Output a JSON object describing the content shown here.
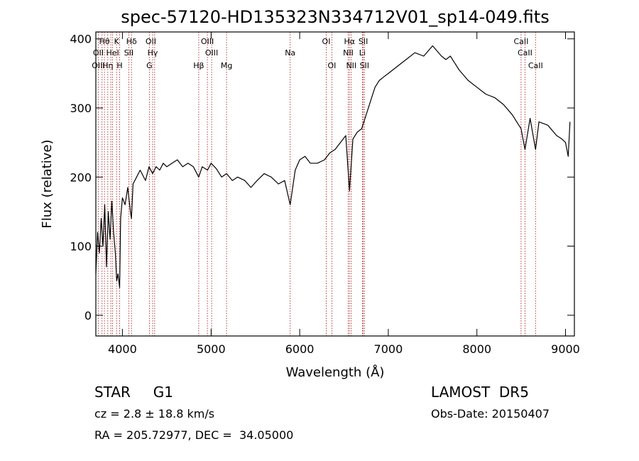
{
  "chart_data": {
    "type": "line",
    "title": "spec-57120-HD135323N334712V01_sp14-049.fits",
    "xlabel": "Wavelength (Å)",
    "ylabel": "Flux (relative)",
    "xlim": [
      3700,
      9100
    ],
    "ylim": [
      -30,
      410
    ],
    "xticks": [
      4000,
      5000,
      6000,
      7000,
      8000,
      9000
    ],
    "yticks": [
      0,
      100,
      200,
      300,
      400
    ],
    "grid": false,
    "line_color": "#000000",
    "marker_color": "#b22222",
    "spectrum": {
      "x": [
        3700,
        3720,
        3740,
        3760,
        3780,
        3800,
        3820,
        3840,
        3860,
        3880,
        3900,
        3920,
        3935,
        3950,
        3968,
        3980,
        4000,
        4030,
        4060,
        4090,
        4101,
        4120,
        4160,
        4200,
        4260,
        4300,
        4340,
        4380,
        4420,
        4460,
        4500,
        4560,
        4620,
        4680,
        4740,
        4800,
        4861,
        4900,
        4960,
        5000,
        5060,
        5120,
        5175,
        5240,
        5300,
        5380,
        5450,
        5520,
        5600,
        5680,
        5760,
        5830,
        5893,
        5950,
        6000,
        6060,
        6120,
        6200,
        6280,
        6340,
        6400,
        6460,
        6520,
        6563,
        6600,
        6650,
        6700,
        6750,
        6800,
        6850,
        6900,
        6950,
        7000,
        7100,
        7200,
        7300,
        7400,
        7500,
        7600,
        7650,
        7700,
        7750,
        7800,
        7900,
        8000,
        8100,
        8200,
        8300,
        8400,
        8498,
        8542,
        8600,
        8662,
        8700,
        8800,
        8900,
        8960,
        9000,
        9030,
        9050
      ],
      "y": [
        60,
        120,
        90,
        140,
        100,
        160,
        70,
        150,
        110,
        165,
        120,
        90,
        50,
        60,
        40,
        140,
        170,
        160,
        185,
        150,
        140,
        190,
        200,
        210,
        195,
        215,
        205,
        215,
        210,
        220,
        215,
        220,
        225,
        215,
        220,
        215,
        200,
        215,
        210,
        220,
        212,
        200,
        205,
        195,
        200,
        195,
        185,
        195,
        205,
        200,
        190,
        195,
        160,
        210,
        225,
        230,
        220,
        220,
        225,
        235,
        240,
        250,
        260,
        180,
        255,
        265,
        270,
        290,
        310,
        330,
        340,
        345,
        350,
        360,
        370,
        380,
        375,
        390,
        375,
        370,
        375,
        365,
        355,
        340,
        330,
        320,
        315,
        305,
        290,
        270,
        240,
        285,
        240,
        280,
        275,
        260,
        255,
        250,
        230,
        280
      ]
    },
    "annotations": [
      {
        "text": "Hθ",
        "x": 3797,
        "row": 1
      },
      {
        "text": "K",
        "x": 3934,
        "row": 1
      },
      {
        "text": "Hδ",
        "x": 4102,
        "row": 1
      },
      {
        "text": "OII",
        "x": 4320,
        "row": 1
      },
      {
        "text": "OIII",
        "x": 4959,
        "row": 1
      },
      {
        "text": "OI",
        "x": 6300,
        "row": 1
      },
      {
        "text": "Hα",
        "x": 6563,
        "row": 1
      },
      {
        "text": "SII",
        "x": 6717,
        "row": 1
      },
      {
        "text": "CaII",
        "x": 8498,
        "row": 1
      },
      {
        "text": "OII",
        "x": 3727,
        "row": 2
      },
      {
        "text": "HeI",
        "x": 3889,
        "row": 2
      },
      {
        "text": "SII",
        "x": 4072,
        "row": 2
      },
      {
        "text": "Hγ",
        "x": 4341,
        "row": 2
      },
      {
        "text": "OIII",
        "x": 5007,
        "row": 2
      },
      {
        "text": "Na",
        "x": 5893,
        "row": 2
      },
      {
        "text": "NII",
        "x": 6548,
        "row": 2
      },
      {
        "text": "Li",
        "x": 6708,
        "row": 2
      },
      {
        "text": "CaII",
        "x": 8542,
        "row": 2
      },
      {
        "text": "OIII",
        "x": 3727,
        "row": 3
      },
      {
        "text": "Hη",
        "x": 3835,
        "row": 3
      },
      {
        "text": "H",
        "x": 3968,
        "row": 3
      },
      {
        "text": "G",
        "x": 4304,
        "row": 3
      },
      {
        "text": "Hβ",
        "x": 4861,
        "row": 3
      },
      {
        "text": "Mg",
        "x": 5175,
        "row": 3
      },
      {
        "text": "OI",
        "x": 6363,
        "row": 3
      },
      {
        "text": "NII",
        "x": 6583,
        "row": 3
      },
      {
        "text": "SII",
        "x": 6731,
        "row": 3
      },
      {
        "text": "CaII",
        "x": 8662,
        "row": 3
      }
    ],
    "line_markers": [
      3727,
      3770,
      3797,
      3835,
      3869,
      3889,
      3934,
      3968,
      4072,
      4102,
      4304,
      4341,
      4363,
      4861,
      4959,
      5007,
      5175,
      5893,
      6300,
      6363,
      6548,
      6563,
      6583,
      6708,
      6717,
      6731,
      8498,
      8542,
      8662
    ]
  },
  "meta": {
    "object_class": "STAR     G1",
    "survey": "LAMOST  DR5",
    "redshift": "cz = 2.8 ± 18.8 km/s",
    "obs_date": "Obs-Date: 20150407",
    "coordinates": "RA = 205.72977, DEC =  34.05000"
  }
}
